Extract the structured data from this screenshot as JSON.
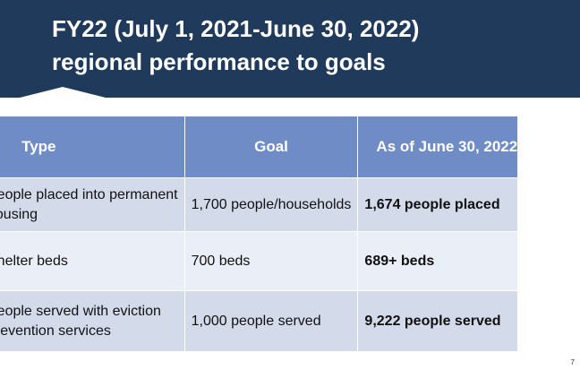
{
  "slide": {
    "title_line1": "FY22 (July 1, 2021-June 30, 2022)",
    "title_line2": "regional performance to goals",
    "page_number": "7"
  },
  "table": {
    "headers": {
      "type": "Type",
      "goal": "Goal",
      "as_of": "As of June 30, 2022"
    },
    "rows": [
      {
        "type_line1": "People placed into permanent",
        "type_line2": "housing",
        "goal": "1,700 people/households",
        "as_of": "1,674 people placed"
      },
      {
        "type_line1": "Shelter beds",
        "type_line2": "",
        "goal": "700 beds",
        "as_of": "689+ beds"
      },
      {
        "type_line1": "People served with eviction",
        "type_line2": "prevention services",
        "goal": "1,000 people served",
        "as_of": "9,222 people served"
      }
    ]
  },
  "colors": {
    "banner": "#1f3a5b",
    "header_row": "#6f8cc6",
    "row_dark": "#d3dbeb",
    "row_light": "#eaeef6"
  }
}
